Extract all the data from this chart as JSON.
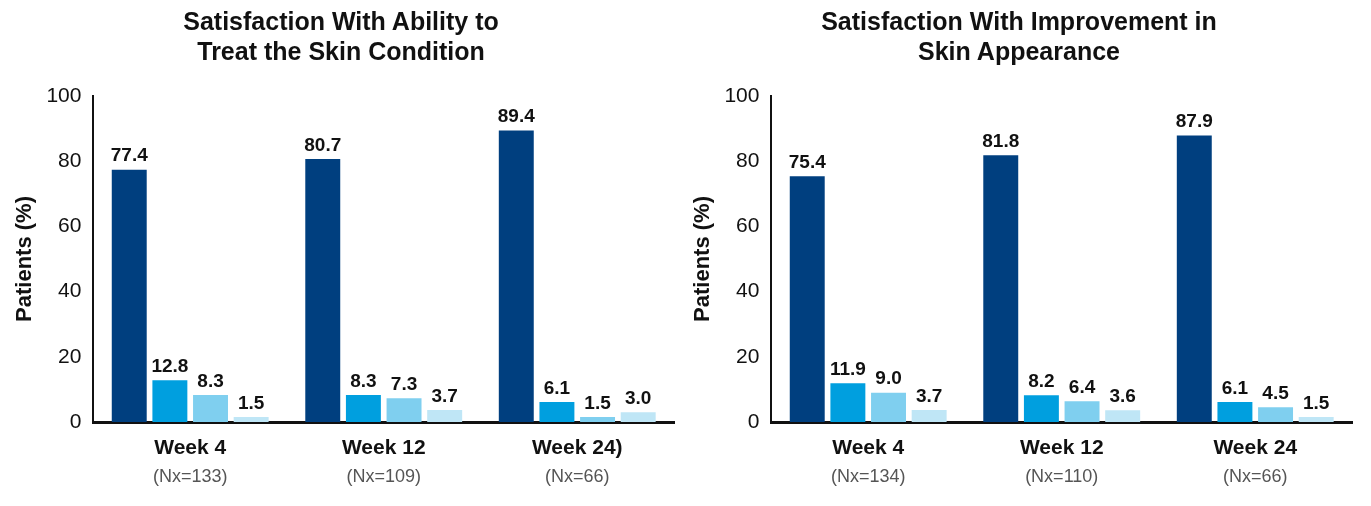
{
  "chart_data": [
    {
      "type": "bar",
      "title": "Satisfaction With Ability to\nTreat the Skin Condition",
      "ylabel": "Patients (%)",
      "categories": [
        "Week 4\n(Nx=133)",
        "Week 12\n(Nx=109)",
        "Week 24)\n(Nx=66)"
      ],
      "ylim": [
        0,
        100
      ],
      "yticks": [
        0,
        20,
        40,
        60,
        80,
        100
      ],
      "grid": false,
      "legend": false,
      "series": [
        {
          "color": "#003f7f",
          "values": [
            77.4,
            80.7,
            89.4
          ],
          "value_labels": [
            "77.4",
            "80.7",
            "89.4"
          ]
        },
        {
          "color": "#009fdf",
          "values": [
            12.8,
            8.3,
            6.1
          ],
          "value_labels": [
            "12.8",
            "8.3",
            "6.1"
          ]
        },
        {
          "color": "#7fcfef",
          "values": [
            8.3,
            7.3,
            1.5
          ],
          "value_labels": [
            "8.3",
            "7.3",
            "1.5"
          ]
        },
        {
          "color": "#bfe6f6",
          "values": [
            1.5,
            3.7,
            3.0
          ],
          "value_labels": [
            "1.5",
            "3.7",
            "3.0"
          ]
        }
      ]
    },
    {
      "type": "bar",
      "title": "Satisfaction With Improvement in\nSkin Appearance",
      "ylabel": "Patients (%)",
      "categories": [
        "Week 4\n(Nx=134)",
        "Week 12\n(Nx=110)",
        "Week 24\n(Nx=66)"
      ],
      "ylim": [
        0,
        100
      ],
      "yticks": [
        0,
        20,
        40,
        60,
        80,
        100
      ],
      "grid": false,
      "legend": false,
      "series": [
        {
          "color": "#003f7f",
          "values": [
            75.4,
            81.8,
            87.9
          ],
          "value_labels": [
            "75.4",
            "81.8",
            "87.9"
          ]
        },
        {
          "color": "#009fdf",
          "values": [
            11.9,
            8.2,
            6.1
          ],
          "value_labels": [
            "11.9",
            "8.2",
            "6.1"
          ]
        },
        {
          "color": "#7fcfef",
          "values": [
            9.0,
            6.4,
            4.5
          ],
          "value_labels": [
            "9.0",
            "6.4",
            "4.5"
          ]
        },
        {
          "color": "#bfe6f6",
          "values": [
            3.7,
            3.6,
            1.5
          ],
          "value_labels": [
            "3.7",
            "3.6",
            "1.5"
          ]
        }
      ]
    }
  ]
}
